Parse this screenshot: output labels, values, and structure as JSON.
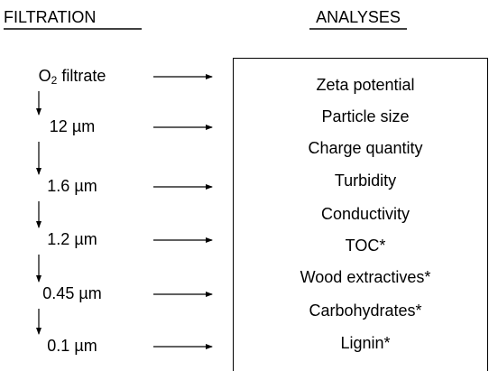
{
  "filtration": {
    "title": "FILTRATION",
    "first_step": {
      "base": "O",
      "subscript": "2",
      "rest": " filtrate"
    },
    "steps": [
      "12 µm",
      "1.6 µm",
      "1.2 µm",
      "0.45 µm",
      "0.1 µm"
    ]
  },
  "analyses": {
    "title": "ANALYSES",
    "items": [
      "Zeta potential",
      "Particle size",
      "Charge quantity",
      "Turbidity",
      "Conductivity",
      "TOC*",
      "Wood extractives*",
      "Carbohydrates*",
      "Lignin*"
    ]
  }
}
